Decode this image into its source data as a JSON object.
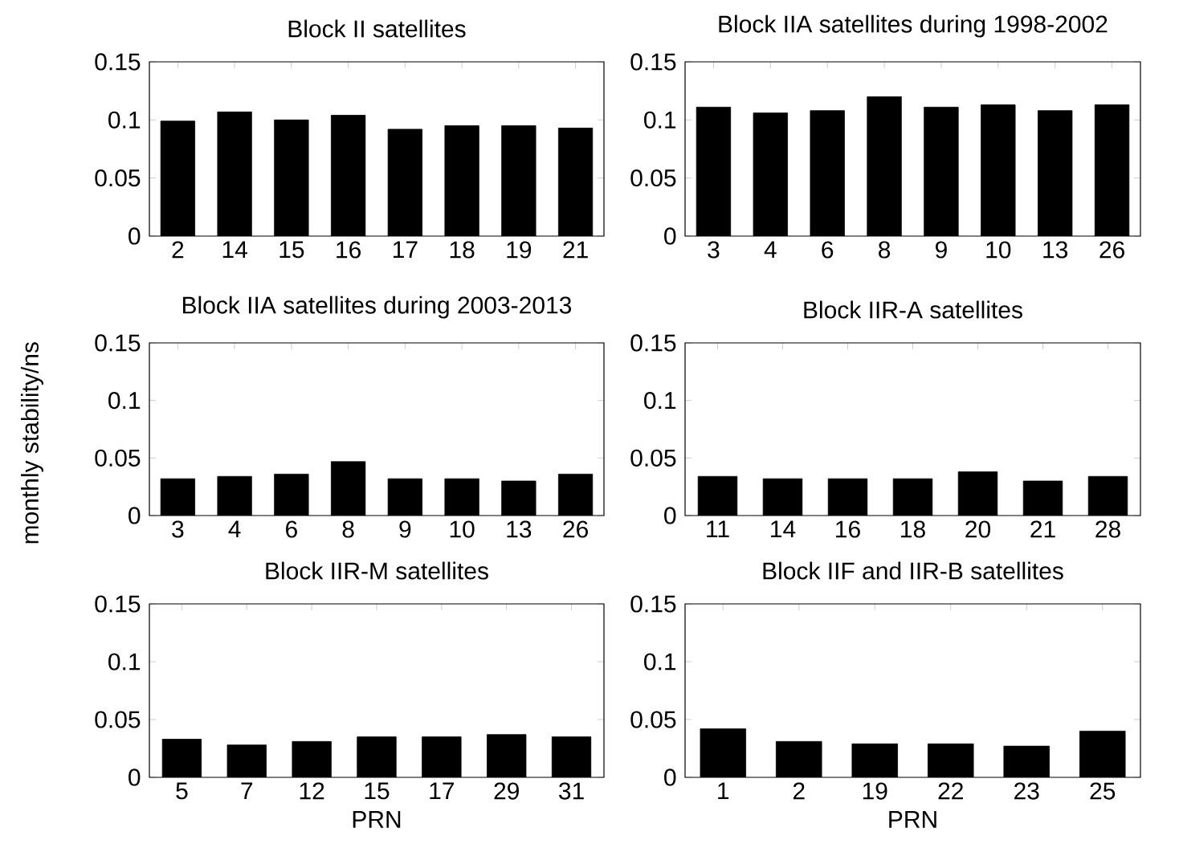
{
  "chart_data": [
    {
      "type": "bar",
      "title": "Block II satellites",
      "categories": [
        "2",
        "14",
        "15",
        "16",
        "17",
        "18",
        "19",
        "21"
      ],
      "values": [
        0.099,
        0.107,
        0.1,
        0.104,
        0.092,
        0.095,
        0.095,
        0.093
      ],
      "color": "#000000",
      "ylim": [
        0,
        0.15
      ],
      "yticks": [
        0,
        0.05,
        0.1,
        0.15
      ]
    },
    {
      "type": "bar",
      "title": "Block IIA satellites during 1998-2002",
      "categories": [
        "3",
        "4",
        "6",
        "8",
        "9",
        "10",
        "13",
        "26"
      ],
      "values": [
        0.111,
        0.106,
        0.108,
        0.12,
        0.111,
        0.113,
        0.108,
        0.113
      ],
      "color": "#000000",
      "ylim": [
        0,
        0.15
      ],
      "yticks": [
        0,
        0.05,
        0.1,
        0.15
      ]
    },
    {
      "type": "bar",
      "title": "Block IIA satellites during 2003-2013",
      "ylabel": "monthly stability/ns",
      "categories": [
        "3",
        "4",
        "6",
        "8",
        "9",
        "10",
        "13",
        "26"
      ],
      "values": [
        0.032,
        0.034,
        0.036,
        0.047,
        0.032,
        0.032,
        0.03,
        0.036
      ],
      "color": "#000000",
      "ylim": [
        0,
        0.15
      ],
      "yticks": [
        0,
        0.05,
        0.1,
        0.15
      ]
    },
    {
      "type": "bar",
      "title": "Block IIR-A satellites",
      "categories": [
        "11",
        "14",
        "16",
        "18",
        "20",
        "21",
        "28"
      ],
      "values": [
        0.034,
        0.032,
        0.032,
        0.032,
        0.038,
        0.03,
        0.034
      ],
      "color": "#000000",
      "ylim": [
        0,
        0.15
      ],
      "yticks": [
        0,
        0.05,
        0.1,
        0.15
      ]
    },
    {
      "type": "bar",
      "title": "Block IIR-M satellites",
      "xlabel": "PRN",
      "categories": [
        "5",
        "7",
        "12",
        "15",
        "17",
        "29",
        "31"
      ],
      "values": [
        0.033,
        0.028,
        0.031,
        0.035,
        0.035,
        0.037,
        0.035
      ],
      "color": "#000000",
      "ylim": [
        0,
        0.15
      ],
      "yticks": [
        0,
        0.05,
        0.1,
        0.15
      ]
    },
    {
      "type": "bar",
      "title": "Block IIF and IIR-B satellites",
      "xlabel": "PRN",
      "categories": [
        "1",
        "2",
        "19",
        "22",
        "23",
        "25"
      ],
      "values": [
        0.042,
        0.031,
        0.029,
        0.029,
        0.027,
        0.04
      ],
      "color": "#000000",
      "ylim": [
        0,
        0.15
      ],
      "yticks": [
        0,
        0.05,
        0.1,
        0.15
      ]
    }
  ]
}
